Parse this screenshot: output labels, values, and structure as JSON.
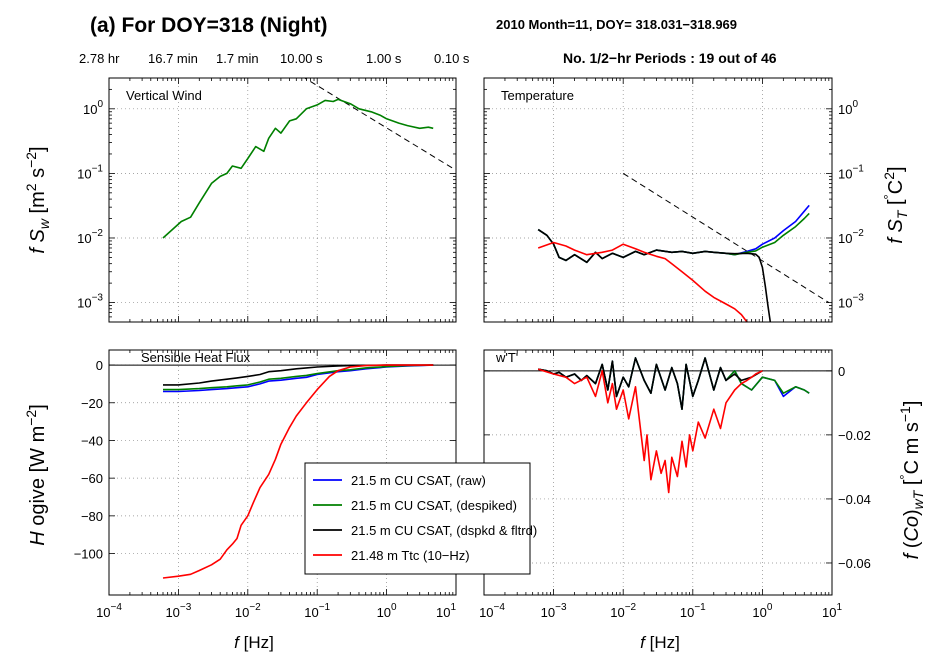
{
  "title": "(a) For DOY=318 (Night)",
  "subtitle": "2010  Month=11, DOY= 318.031−318.969",
  "periods_text": "No. 1/2−hr Periods : 19 out of 46",
  "period_ticks": [
    "2.78 hr",
    "16.7 min",
    "1.7 min",
    "10.00 s",
    "1.00 s",
    "0.10 s"
  ],
  "colors": {
    "raw": "#0000ff",
    "despiked": "#008000",
    "dspkd_fltrd": "#000000",
    "ttc": "#ff0000",
    "ref_line": "#000000"
  },
  "chart_data": [
    {
      "panel": "top-left",
      "type": "line",
      "annotation": "Vertical Wind",
      "xlabel": "f  [Hz]",
      "ylabel": "f S_w  [m^2 s^-2]",
      "xscale": "log",
      "yscale": "log",
      "xlim": [
        0.0001,
        10
      ],
      "ylim": [
        0.0005,
        3
      ],
      "yticks": [
        "10^-3",
        "10^-2",
        "10^-1",
        "10^0"
      ],
      "ytick_position": "left",
      "grid": true,
      "series": [
        {
          "key": "despiked",
          "x": [
            0.0006,
            0.0011,
            0.0015,
            0.002,
            0.003,
            0.004,
            0.005,
            0.006,
            0.008,
            0.01,
            0.013,
            0.017,
            0.02,
            0.025,
            0.03,
            0.04,
            0.05,
            0.07,
            0.1,
            0.13,
            0.17,
            0.2,
            0.3,
            0.4,
            0.6,
            0.8,
            1,
            1.5,
            2,
            3,
            4,
            4.7
          ],
          "y": [
            0.01,
            0.018,
            0.021,
            0.035,
            0.07,
            0.09,
            0.1,
            0.13,
            0.12,
            0.17,
            0.26,
            0.22,
            0.35,
            0.5,
            0.42,
            0.65,
            0.7,
            1.0,
            1.15,
            1.35,
            1.3,
            1.4,
            1.2,
            1.0,
            0.9,
            0.8,
            0.7,
            0.6,
            0.55,
            0.5,
            0.52,
            0.5
          ]
        }
      ],
      "reference_line": {
        "x": [
          0.06,
          9
        ],
        "y": [
          3.2,
          0.12
        ],
        "style": "dashed"
      }
    },
    {
      "panel": "top-right",
      "type": "line",
      "annotation": "Temperature",
      "xlabel": "f  [Hz]",
      "ylabel": "f S_T  [°C^2]",
      "xscale": "log",
      "yscale": "log",
      "xlim": [
        0.0001,
        10
      ],
      "ylim": [
        0.0005,
        3
      ],
      "yticks": [
        "10^-3",
        "10^-2",
        "10^-1",
        "10^0"
      ],
      "ytick_position": "right",
      "grid": true,
      "series": [
        {
          "key": "raw",
          "x": [
            0.0006,
            0.0008,
            0.001,
            0.0012,
            0.0015,
            0.002,
            0.003,
            0.004,
            0.005,
            0.007,
            0.01,
            0.015,
            0.02,
            0.03,
            0.05,
            0.07,
            0.1,
            0.15,
            0.2,
            0.3,
            0.4,
            0.6,
            0.8,
            1,
            1.5,
            2,
            3,
            4,
            4.7
          ],
          "y": [
            0.0135,
            0.011,
            0.008,
            0.005,
            0.0045,
            0.0055,
            0.0042,
            0.006,
            0.0048,
            0.0058,
            0.005,
            0.0062,
            0.0055,
            0.0065,
            0.006,
            0.0062,
            0.0058,
            0.0062,
            0.006,
            0.0058,
            0.0055,
            0.0062,
            0.0068,
            0.008,
            0.01,
            0.013,
            0.018,
            0.026,
            0.032
          ]
        },
        {
          "key": "despiked",
          "x": [
            0.0006,
            0.0008,
            0.001,
            0.0012,
            0.0015,
            0.002,
            0.003,
            0.004,
            0.005,
            0.007,
            0.01,
            0.015,
            0.02,
            0.03,
            0.05,
            0.07,
            0.1,
            0.15,
            0.2,
            0.3,
            0.4,
            0.6,
            0.8,
            1,
            1.5,
            2,
            3,
            4,
            4.7
          ],
          "y": [
            0.0135,
            0.011,
            0.008,
            0.005,
            0.0045,
            0.0055,
            0.0042,
            0.006,
            0.0048,
            0.0058,
            0.005,
            0.0062,
            0.0055,
            0.0065,
            0.006,
            0.0062,
            0.0058,
            0.0062,
            0.006,
            0.0058,
            0.0055,
            0.006,
            0.0063,
            0.0072,
            0.0085,
            0.011,
            0.015,
            0.02,
            0.024
          ]
        },
        {
          "key": "dspkd_fltrd",
          "x": [
            0.0006,
            0.0008,
            0.001,
            0.0012,
            0.0015,
            0.002,
            0.003,
            0.004,
            0.005,
            0.007,
            0.01,
            0.015,
            0.02,
            0.03,
            0.05,
            0.07,
            0.1,
            0.15,
            0.2,
            0.3,
            0.4,
            0.6,
            0.8,
            0.9,
            1.0,
            1.1,
            1.2,
            1.3
          ],
          "y": [
            0.0135,
            0.011,
            0.008,
            0.005,
            0.0045,
            0.0055,
            0.0042,
            0.006,
            0.0048,
            0.0058,
            0.005,
            0.0062,
            0.0055,
            0.0065,
            0.006,
            0.0062,
            0.0058,
            0.0062,
            0.006,
            0.0058,
            0.0057,
            0.0058,
            0.0056,
            0.005,
            0.0035,
            0.0018,
            0.0009,
            0.0005
          ]
        },
        {
          "key": "ttc",
          "x": [
            0.0006,
            0.001,
            0.0015,
            0.002,
            0.003,
            0.005,
            0.007,
            0.01,
            0.015,
            0.02,
            0.03,
            0.04,
            0.05,
            0.07,
            0.1,
            0.15,
            0.2,
            0.3,
            0.4,
            0.5,
            0.6
          ],
          "y": [
            0.007,
            0.0085,
            0.0075,
            0.0065,
            0.0055,
            0.006,
            0.0065,
            0.008,
            0.0068,
            0.006,
            0.0052,
            0.0048,
            0.004,
            0.003,
            0.0022,
            0.0015,
            0.0012,
            0.00095,
            0.0008,
            0.00065,
            0.0005
          ]
        }
      ],
      "reference_line": {
        "x": [
          0.01,
          9
        ],
        "y": [
          0.1,
          0.001
        ],
        "style": "dashed"
      }
    },
    {
      "panel": "bottom-left",
      "type": "line",
      "annotation": "Sensible Heat Flux",
      "xlabel": "f  [Hz]",
      "ylabel": "H ogive  [W m^-2]",
      "xscale": "log",
      "yscale": "linear",
      "xlim": [
        0.0001,
        10
      ],
      "ylim": [
        -122,
        8
      ],
      "yticks": [
        0,
        -20,
        -40,
        -60,
        -80,
        -100
      ],
      "ytick_position": "left",
      "xticks": [
        "10^-4",
        "10^-3",
        "10^-2",
        "10^-1",
        "10^0",
        "10^1"
      ],
      "grid": true,
      "zero_line": true,
      "series": [
        {
          "key": "raw",
          "x": [
            0.0006,
            0.001,
            0.002,
            0.003,
            0.005,
            0.007,
            0.01,
            0.015,
            0.02,
            0.03,
            0.05,
            0.07,
            0.1,
            0.2,
            0.3,
            0.5,
            1,
            2,
            4.7
          ],
          "y": [
            -14,
            -14,
            -13.5,
            -13,
            -12.5,
            -12,
            -11.5,
            -10,
            -8.5,
            -8,
            -7,
            -6.5,
            -5,
            -3.5,
            -3,
            -2,
            -1,
            -0.5,
            0
          ]
        },
        {
          "key": "despiked",
          "x": [
            0.0006,
            0.001,
            0.002,
            0.003,
            0.005,
            0.007,
            0.01,
            0.015,
            0.02,
            0.03,
            0.05,
            0.07,
            0.1,
            0.2,
            0.3,
            0.5,
            1,
            2,
            4.7
          ],
          "y": [
            -13,
            -13,
            -12.5,
            -12,
            -11.5,
            -11,
            -10.5,
            -9,
            -7.5,
            -7,
            -6,
            -5.5,
            -4.5,
            -3,
            -2.5,
            -1.5,
            -0.8,
            -0.3,
            0
          ]
        },
        {
          "key": "dspkd_fltrd",
          "x": [
            0.0006,
            0.001,
            0.002,
            0.003,
            0.005,
            0.007,
            0.01,
            0.015,
            0.02,
            0.03,
            0.05,
            0.07,
            0.1,
            0.2,
            0.3,
            0.5,
            1,
            2,
            4.7
          ],
          "y": [
            -10.5,
            -10.5,
            -9.5,
            -8.5,
            -7.5,
            -6.8,
            -6,
            -5,
            -3.5,
            -3,
            -2,
            -1.5,
            -1,
            -0.5,
            -0.3,
            -0.1,
            0,
            0,
            0
          ]
        },
        {
          "key": "ttc",
          "x": [
            0.0006,
            0.001,
            0.0015,
            0.002,
            0.003,
            0.004,
            0.005,
            0.006,
            0.007,
            0.008,
            0.01,
            0.012,
            0.015,
            0.02,
            0.025,
            0.03,
            0.04,
            0.05,
            0.07,
            0.1,
            0.15,
            0.2,
            0.3,
            0.5,
            1,
            2,
            4.7
          ],
          "y": [
            -113,
            -112,
            -111,
            -109,
            -106,
            -103,
            -98,
            -95,
            -92,
            -85,
            -80,
            -73,
            -65,
            -58,
            -50,
            -42,
            -33,
            -27,
            -20,
            -13,
            -6,
            -3,
            -1,
            -0.3,
            0,
            0,
            0
          ]
        }
      ]
    },
    {
      "panel": "bottom-right",
      "type": "line",
      "annotation": "w'T'",
      "xlabel": "f  [Hz]",
      "ylabel": "f (Co)_wT  [°C m s^-1]",
      "xscale": "log",
      "yscale": "linear",
      "xlim": [
        0.0001,
        10
      ],
      "ylim": [
        -0.07,
        0.0065
      ],
      "yticks": [
        0,
        -0.02,
        -0.04,
        -0.06
      ],
      "ytick_position": "right",
      "xticks": [
        "10^-4",
        "10^-3",
        "10^-2",
        "10^-1",
        "10^0",
        "10^1"
      ],
      "grid": true,
      "zero_line": true,
      "series": [
        {
          "key": "raw",
          "x": [
            0.0006,
            0.0008,
            0.001,
            0.0012,
            0.0015,
            0.002,
            0.0025,
            0.003,
            0.004,
            0.005,
            0.006,
            0.007,
            0.008,
            0.01,
            0.012,
            0.015,
            0.02,
            0.025,
            0.03,
            0.04,
            0.05,
            0.06,
            0.07,
            0.08,
            0.1,
            0.12,
            0.15,
            0.2,
            0.25,
            0.3,
            0.4,
            0.5,
            0.7,
            1,
            1.5,
            2,
            3,
            4,
            4.7
          ],
          "y": [
            0.0005,
            0,
            -0.001,
            -0.0005,
            -0.002,
            -0.001,
            -0.003,
            -0.0015,
            -0.004,
            0.002,
            -0.006,
            0.003,
            -0.008,
            -0.002,
            -0.005,
            0.004,
            -0.003,
            -0.007,
            0.002,
            -0.006,
            0.001,
            -0.004,
            -0.012,
            0.002,
            -0.008,
            -0.003,
            0.004,
            -0.006,
            0.001,
            -0.003,
            0,
            -0.004,
            -0.006,
            -0.002,
            -0.003,
            -0.008,
            -0.005,
            -0.006,
            -0.007
          ]
        },
        {
          "key": "despiked",
          "x": [
            0.0006,
            0.0008,
            0.001,
            0.0012,
            0.0015,
            0.002,
            0.0025,
            0.003,
            0.004,
            0.005,
            0.006,
            0.007,
            0.008,
            0.01,
            0.012,
            0.015,
            0.02,
            0.025,
            0.03,
            0.04,
            0.05,
            0.06,
            0.07,
            0.08,
            0.1,
            0.12,
            0.15,
            0.2,
            0.25,
            0.3,
            0.4,
            0.5,
            0.7,
            1,
            1.5,
            2,
            3,
            4,
            4.7
          ],
          "y": [
            0.0005,
            0,
            -0.001,
            -0.0005,
            -0.002,
            -0.001,
            -0.003,
            -0.0015,
            -0.004,
            0.002,
            -0.006,
            0.003,
            -0.008,
            -0.002,
            -0.005,
            0.004,
            -0.003,
            -0.007,
            0.002,
            -0.006,
            0.001,
            -0.004,
            -0.012,
            0.002,
            -0.008,
            -0.003,
            0.004,
            -0.006,
            0.001,
            -0.003,
            0,
            -0.004,
            -0.006,
            -0.002,
            -0.003,
            -0.007,
            -0.005,
            -0.006,
            -0.007
          ]
        },
        {
          "key": "dspkd_fltrd",
          "x": [
            0.0006,
            0.0008,
            0.001,
            0.0012,
            0.0015,
            0.002,
            0.0025,
            0.003,
            0.004,
            0.005,
            0.006,
            0.007,
            0.008,
            0.01,
            0.012,
            0.015,
            0.02,
            0.025,
            0.03,
            0.04,
            0.05,
            0.06,
            0.07,
            0.08,
            0.1,
            0.12,
            0.15,
            0.2,
            0.25,
            0.3,
            0.4,
            0.5,
            0.7,
            1
          ],
          "y": [
            0.0005,
            0,
            -0.001,
            -0.0005,
            -0.002,
            -0.001,
            -0.003,
            -0.0015,
            -0.004,
            0.002,
            -0.006,
            0.003,
            -0.008,
            -0.002,
            -0.005,
            0.004,
            -0.003,
            -0.007,
            0.002,
            -0.006,
            0.001,
            -0.004,
            -0.012,
            0.002,
            -0.008,
            -0.003,
            0.004,
            -0.006,
            0.001,
            -0.003,
            -0.001,
            -0.003,
            -0.002,
            0
          ]
        },
        {
          "key": "ttc",
          "x": [
            0.0006,
            0.001,
            0.0015,
            0.002,
            0.003,
            0.004,
            0.005,
            0.006,
            0.007,
            0.008,
            0.01,
            0.012,
            0.015,
            0.02,
            0.022,
            0.025,
            0.03,
            0.035,
            0.04,
            0.045,
            0.05,
            0.06,
            0.07,
            0.08,
            0.09,
            0.1,
            0.12,
            0.15,
            0.2,
            0.25,
            0.3,
            0.4,
            0.5,
            0.6,
            0.7,
            0.8,
            1
          ],
          "y": [
            0.0005,
            -0.001,
            -0.002,
            -0.004,
            -0.002,
            -0.008,
            0,
            -0.01,
            -0.004,
            -0.012,
            -0.006,
            -0.015,
            -0.005,
            -0.028,
            -0.02,
            -0.034,
            -0.025,
            -0.032,
            -0.028,
            -0.038,
            -0.027,
            -0.033,
            -0.022,
            -0.03,
            -0.02,
            -0.025,
            -0.016,
            -0.021,
            -0.012,
            -0.018,
            -0.01,
            -0.006,
            -0.004,
            -0.003,
            -0.002,
            -0.001,
            0
          ]
        }
      ]
    }
  ],
  "legend": {
    "placement": "bottom-center",
    "entries": [
      {
        "key": "raw",
        "label": "21.5 m CU CSAT, (raw)"
      },
      {
        "key": "despiked",
        "label": "21.5 m CU CSAT, (despiked)"
      },
      {
        "key": "dspkd_fltrd",
        "label": "21.5 m CU CSAT, (dspkd & fltrd)"
      },
      {
        "key": "ttc",
        "label": "21.48 m Ttc (10−Hz)"
      }
    ]
  }
}
